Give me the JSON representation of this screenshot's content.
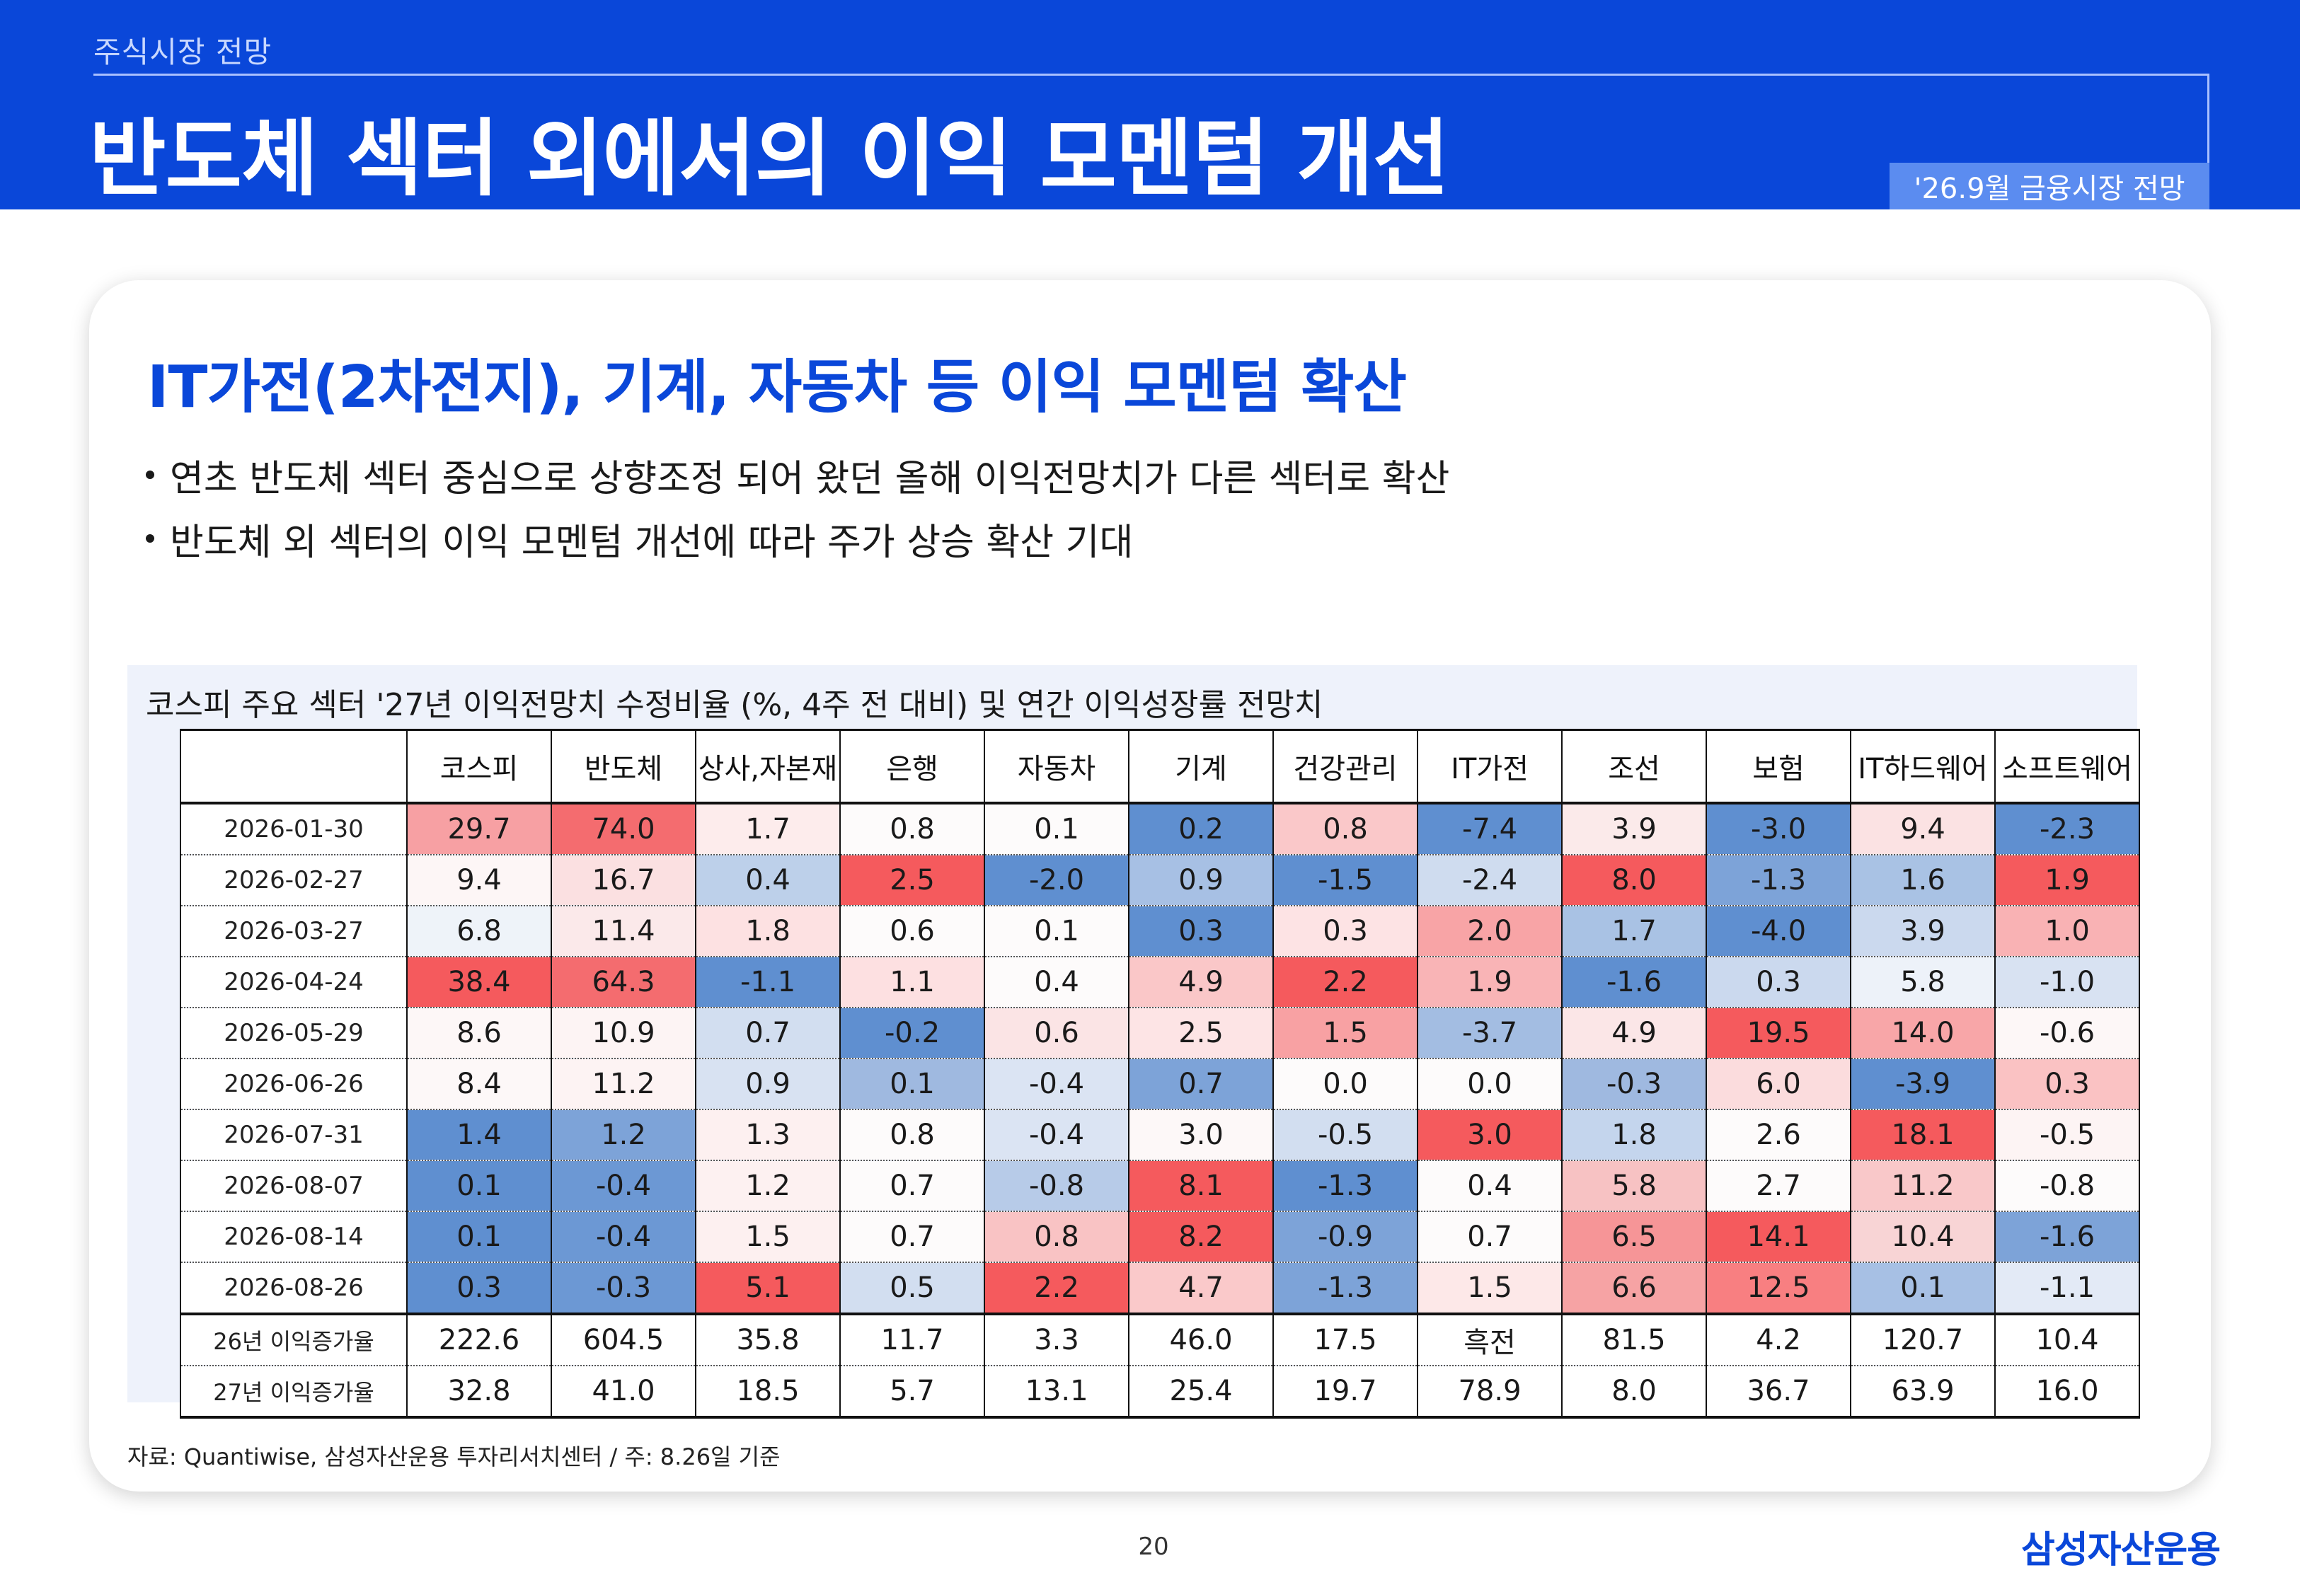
{
  "header": {
    "eyebrow": "주식시장 전망",
    "title": "반도체 섹터 외에서의 이익 모멘텀 개선",
    "badge": "'26.9월 금융시장 전망"
  },
  "subtitle": "IT가전(2차전지), 기계, 자동차 등 이익 모멘텀 확산",
  "bullets": [
    "연초 반도체 섹터 중심으로 상향조정 되어 왔던 올해 이익전망치가 다른 섹터로 확산",
    "반도체 외 섹터의 이익 모멘텀 개선에 따라 주가 상승 확산 기대"
  ],
  "table": {
    "title": "코스피 주요 섹터 '27년 이익전망치 수정비율 (%, 4주 전 대비) 및 연간 이익성장률 전망치",
    "columns": [
      "코스피",
      "반도체",
      "상사,자본재",
      "은행",
      "자동차",
      "기계",
      "건강관리",
      "IT가전",
      "조선",
      "보험",
      "IT하드웨어",
      "소프트웨어"
    ],
    "rows": [
      {
        "label": "2026-01-30",
        "values": [
          "29.7",
          "74.0",
          "1.7",
          "0.8",
          "0.1",
          "0.2",
          "0.8",
          "-7.4",
          "3.9",
          "-3.0",
          "9.4",
          "-2.3"
        ]
      },
      {
        "label": "2026-02-27",
        "values": [
          "9.4",
          "16.7",
          "0.4",
          "2.5",
          "-2.0",
          "0.9",
          "-1.5",
          "-2.4",
          "8.0",
          "-1.3",
          "1.6",
          "1.9"
        ]
      },
      {
        "label": "2026-03-27",
        "values": [
          "6.8",
          "11.4",
          "1.8",
          "0.6",
          "0.1",
          "0.3",
          "0.3",
          "2.0",
          "1.7",
          "-4.0",
          "3.9",
          "1.0"
        ]
      },
      {
        "label": "2026-04-24",
        "values": [
          "38.4",
          "64.3",
          "-1.1",
          "1.1",
          "0.4",
          "4.9",
          "2.2",
          "1.9",
          "-1.6",
          "0.3",
          "5.8",
          "-1.0"
        ]
      },
      {
        "label": "2026-05-29",
        "values": [
          "8.6",
          "10.9",
          "0.7",
          "-0.2",
          "0.6",
          "2.5",
          "1.5",
          "-3.7",
          "4.9",
          "19.5",
          "14.0",
          "-0.6"
        ]
      },
      {
        "label": "2026-06-26",
        "values": [
          "8.4",
          "11.2",
          "0.9",
          "0.1",
          "-0.4",
          "0.7",
          "0.0",
          "0.0",
          "-0.3",
          "6.0",
          "-3.9",
          "0.3"
        ]
      },
      {
        "label": "2026-07-31",
        "values": [
          "1.4",
          "1.2",
          "1.3",
          "0.8",
          "-0.4",
          "3.0",
          "-0.5",
          "3.0",
          "1.8",
          "2.6",
          "18.1",
          "-0.5"
        ]
      },
      {
        "label": "2026-08-07",
        "values": [
          "0.1",
          "-0.4",
          "1.2",
          "0.7",
          "-0.8",
          "8.1",
          "-1.3",
          "0.4",
          "5.8",
          "2.7",
          "11.2",
          "-0.8"
        ]
      },
      {
        "label": "2026-08-14",
        "values": [
          "0.1",
          "-0.4",
          "1.5",
          "0.7",
          "0.8",
          "8.2",
          "-0.9",
          "0.7",
          "6.5",
          "14.1",
          "10.4",
          "-1.6"
        ]
      },
      {
        "label": "2026-08-26",
        "values": [
          "0.3",
          "-0.3",
          "5.1",
          "0.5",
          "2.2",
          "4.7",
          "-1.3",
          "1.5",
          "6.6",
          "12.5",
          "0.1",
          "-1.1"
        ]
      }
    ],
    "heat_colors": [
      [
        "#f7a0a3",
        "#f46c6f",
        "#fdecec",
        "#fdfbfb",
        "#fdfbfb",
        "#5f8fd0",
        "#fac8c9",
        "#5f8fd0",
        "#fbeaea",
        "#5f8fd0",
        "#fbe2e3",
        "#5f8fd0"
      ],
      [
        "#fdf6f6",
        "#fbe0e1",
        "#bdd0ea",
        "#f55a5d",
        "#5f8fd0",
        "#a7c0e4",
        "#5f8fd0",
        "#cfdcef",
        "#f55a5d",
        "#7da3d8",
        "#a9c2e4",
        "#f55a5d"
      ],
      [
        "#eef3f9",
        "#fbe9ea",
        "#fde1e2",
        "#fdfbfb",
        "#fdfbfb",
        "#5f8fd0",
        "#fde3e4",
        "#f8a4a6",
        "#a9c2e4",
        "#5f8fd0",
        "#cbd9ee",
        "#f9b2b4"
      ],
      [
        "#f55a5d",
        "#f46c6f",
        "#5f8fd0",
        "#fde0e1",
        "#fdfbfb",
        "#fac7c8",
        "#f55a5d",
        "#f9b4b6",
        "#5f8fd0",
        "#cbd9ee",
        "#edf2f9",
        "#d8e2f2"
      ],
      [
        "#fdf7f7",
        "#fdf4f4",
        "#d2def0",
        "#5f8fd0",
        "#fbe4e5",
        "#fde4e5",
        "#f8a1a3",
        "#a3bde2",
        "#fbe6e7",
        "#f55a5d",
        "#f8a6a8",
        "#fdf7f7"
      ],
      [
        "#fdf8f8",
        "#fdf3f3",
        "#d8e2f2",
        "#9fb9e0",
        "#dbe4f3",
        "#7da3d8",
        "#fdfbfb",
        "#fdfbfb",
        "#9fb9e0",
        "#fbdcdd",
        "#5f8fd0",
        "#fac2c3"
      ],
      [
        "#5f8fd0",
        "#7da3d8",
        "#fdf0f0",
        "#fdfbfb",
        "#dbe4f3",
        "#fdf8f8",
        "#d2def0",
        "#f55a5d",
        "#c4d5ed",
        "#fdfbfb",
        "#f55a5d",
        "#fdf4f4"
      ],
      [
        "#5f8fd0",
        "#6c98d4",
        "#fdf1f1",
        "#fdfbfb",
        "#b7cbe8",
        "#f55a5d",
        "#5f8fd0",
        "#fdfbfb",
        "#f7c2c3",
        "#fdfbfb",
        "#f9c8c9",
        "#fdfbfb"
      ],
      [
        "#5f8fd0",
        "#6c98d4",
        "#fdf0f0",
        "#fdfbfb",
        "#f9c3c4",
        "#f55a5d",
        "#7da3d8",
        "#fdfbfb",
        "#f69597",
        "#f55a5d",
        "#f8d4d5",
        "#7da3d8"
      ],
      [
        "#5f8fd0",
        "#6c98d4",
        "#f55a5d",
        "#d2def0",
        "#f55a5d",
        "#fac9ca",
        "#7da3d8",
        "#fde8e8",
        "#f6a3a4",
        "#f87f81",
        "#a7c0e4",
        "#e3eaf6"
      ]
    ],
    "growth_rows": [
      {
        "label": "26년 이익증가율",
        "values": [
          "222.6",
          "604.5",
          "35.8",
          "11.7",
          "3.3",
          "46.0",
          "17.5",
          "흑전",
          "81.5",
          "4.2",
          "120.7",
          "10.4"
        ]
      },
      {
        "label": "27년 이익증가율",
        "values": [
          "32.8",
          "41.0",
          "18.5",
          "5.7",
          "13.1",
          "25.4",
          "19.7",
          "78.9",
          "8.0",
          "36.7",
          "63.9",
          "16.0"
        ]
      }
    ]
  },
  "source": "자료: Quantiwise, 삼성자산운용 투자리서치센터 / 주: 8.26일 기준",
  "page_number": "20",
  "logo": "삼성자산운용"
}
